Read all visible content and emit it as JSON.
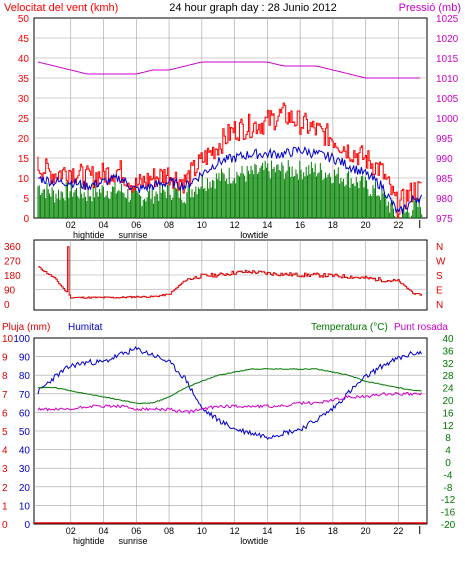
{
  "header": {
    "left_title": "Velocitat del vent (kmh)",
    "center_title": "24 hour graph day : 28 Junio 2012",
    "right_title": "Pressió (mb)"
  },
  "colors": {
    "wind_gust": "#ff0000",
    "wind_avg": "#0000cc",
    "wind_fill": "#008000",
    "pressure": "#cc00cc",
    "direction": "#e00000",
    "humidity": "#0000cc",
    "temperature": "#007700",
    "dewpoint": "#cc00cc",
    "rain": "#e00000",
    "grid": "#a0a0a0",
    "frame": "#000000"
  },
  "chart_data": [
    {
      "type": "line",
      "id": "wind",
      "title": "",
      "ylabel_left": "Velocitat del vent (kmh)",
      "ylabel_right": "Pressió (mb)",
      "ylim_left": [
        0,
        50
      ],
      "ylim_right": [
        975,
        1025
      ],
      "yticks_left": [
        0,
        5,
        10,
        15,
        20,
        25,
        30,
        35,
        40,
        45,
        50
      ],
      "yticks_right": [
        975,
        980,
        985,
        990,
        995,
        1000,
        1005,
        1010,
        1015,
        1020,
        1025
      ],
      "xticks": [
        "02",
        "04",
        "06",
        "08",
        "10",
        "12",
        "14",
        "16",
        "18",
        "20",
        "22"
      ],
      "x_markers": [
        {
          "label": "hightide",
          "x": 3.1
        },
        {
          "label": "sunrise",
          "x": 5.8
        },
        {
          "label": "lowtide",
          "x": 13.2
        }
      ],
      "x_hours": [
        0,
        1,
        2,
        3,
        4,
        5,
        6,
        7,
        8,
        9,
        10,
        11,
        12,
        13,
        14,
        15,
        16,
        17,
        18,
        19,
        20,
        21,
        22,
        23
      ],
      "series": [
        {
          "name": "gust",
          "values": [
            13,
            11,
            12,
            10,
            11,
            12,
            8,
            10,
            11,
            9,
            14,
            18,
            22,
            23,
            24,
            26,
            24,
            22,
            20,
            17,
            15,
            12,
            3,
            7
          ]
        },
        {
          "name": "average",
          "values": [
            10,
            9,
            9,
            8,
            9,
            10,
            7,
            8,
            9,
            8,
            11,
            14,
            15,
            16,
            16,
            16,
            17,
            16,
            15,
            13,
            11,
            8,
            1,
            5
          ]
        },
        {
          "name": "wind fill",
          "values": [
            8,
            6,
            7,
            6,
            7,
            7,
            5,
            6,
            7,
            6,
            9,
            10,
            11,
            11,
            12,
            12,
            12,
            12,
            11,
            10,
            8,
            6,
            0,
            3
          ]
        }
      ],
      "pressure_values": [
        1014,
        1013,
        1012,
        1011,
        1011,
        1011,
        1011,
        1012,
        1012,
        1013,
        1014,
        1014,
        1014,
        1014,
        1014,
        1013,
        1013,
        1013,
        1012,
        1011,
        1010,
        1010,
        1010,
        1010
      ]
    },
    {
      "type": "line",
      "id": "direction",
      "ylim": [
        0,
        360
      ],
      "yticks_left": [
        0,
        90,
        180,
        270,
        360
      ],
      "yticks_right": [
        "N",
        "E",
        "S",
        "W",
        "N"
      ],
      "x_hours": [
        0,
        1,
        2,
        3,
        4,
        5,
        6,
        7,
        8,
        9,
        10,
        11,
        12,
        13,
        14,
        15,
        16,
        17,
        18,
        19,
        20,
        21,
        22,
        23
      ],
      "series": [
        {
          "name": "direction",
          "values": [
            230,
            160,
            40,
            40,
            40,
            40,
            45,
            45,
            60,
            150,
            175,
            180,
            195,
            200,
            190,
            185,
            180,
            180,
            175,
            170,
            160,
            150,
            140,
            60
          ]
        }
      ]
    },
    {
      "type": "line",
      "id": "temp_hum",
      "labels": {
        "rain": "Pluja (mm)",
        "humidity": "Humitat",
        "temperature": "Temperatura (°C)",
        "dewpoint": "Punt rosada"
      },
      "ylim_rain": [
        0,
        10
      ],
      "ylim_humidity": [
        0,
        100
      ],
      "ylim_temp": [
        -20,
        40
      ],
      "yticks_rain": [
        0,
        1,
        2,
        3,
        4,
        5,
        6,
        7,
        8,
        9,
        10
      ],
      "yticks_humidity": [
        0,
        10,
        20,
        30,
        40,
        50,
        60,
        70,
        80,
        90,
        100
      ],
      "yticks_temp": [
        -20,
        -16,
        -12,
        -8,
        -4,
        0,
        4,
        8,
        12,
        16,
        20,
        24,
        28,
        32,
        36,
        40
      ],
      "xticks": [
        "02",
        "04",
        "06",
        "08",
        "10",
        "12",
        "14",
        "16",
        "18",
        "20",
        "22"
      ],
      "x_markers": [
        {
          "label": "hightide",
          "x": 3.1
        },
        {
          "label": "sunrise",
          "x": 5.8
        },
        {
          "label": "lowtide",
          "x": 13.2
        }
      ],
      "x_hours": [
        0,
        1,
        2,
        3,
        4,
        5,
        6,
        7,
        8,
        9,
        10,
        11,
        12,
        13,
        14,
        15,
        16,
        17,
        18,
        19,
        20,
        21,
        22,
        23
      ],
      "series": [
        {
          "name": "humidity",
          "values": [
            71,
            79,
            85,
            87,
            87,
            91,
            94,
            91,
            87,
            78,
            62,
            56,
            51,
            49,
            47,
            49,
            51,
            56,
            62,
            71,
            79,
            85,
            89,
            92
          ]
        },
        {
          "name": "temperature",
          "values": [
            24,
            24,
            23,
            22,
            21,
            20,
            19,
            19,
            21,
            24,
            26,
            28,
            29,
            30,
            30,
            30,
            30,
            30,
            29,
            28,
            26,
            25,
            24,
            23
          ]
        },
        {
          "name": "dewpoint",
          "values": [
            17,
            17,
            17,
            18,
            18,
            18,
            17,
            17,
            17,
            16,
            17,
            18,
            18,
            18,
            18,
            18,
            19,
            19,
            20,
            21,
            21,
            22,
            22,
            22
          ]
        },
        {
          "name": "rain",
          "values": [
            0,
            0,
            0,
            0,
            0,
            0,
            0,
            0,
            0,
            0,
            0,
            0,
            0,
            0,
            0,
            0,
            0,
            0,
            0,
            0,
            0,
            0,
            0,
            0
          ]
        }
      ]
    }
  ]
}
